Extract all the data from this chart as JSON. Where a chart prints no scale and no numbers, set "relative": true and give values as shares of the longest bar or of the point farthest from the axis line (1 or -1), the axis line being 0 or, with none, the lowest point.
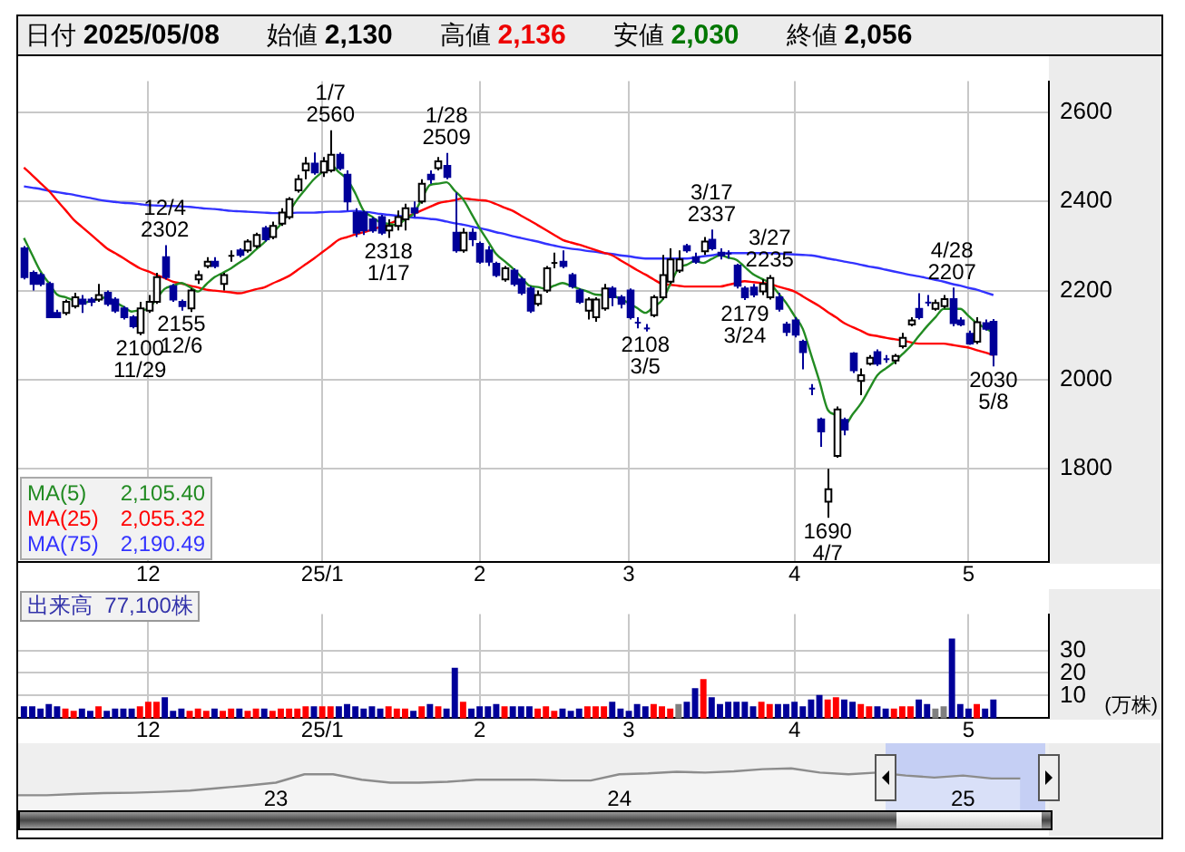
{
  "chart_data": [
    {
      "type": "candlestick",
      "grid": true,
      "legend": "bottom left",
      "categories": [
        null,
        null,
        null,
        null,
        null,
        null,
        null,
        null,
        null,
        null,
        null,
        null,
        null,
        null,
        null,
        "12",
        null,
        null,
        null,
        null,
        null,
        null,
        null,
        null,
        null,
        null,
        null,
        null,
        null,
        null,
        null,
        null,
        null,
        null,
        null,
        null,
        "25/1",
        null,
        null,
        null,
        null,
        null,
        null,
        null,
        null,
        null,
        null,
        null,
        null,
        null,
        null,
        null,
        null,
        null,
        null,
        "2",
        null,
        null,
        null,
        null,
        null,
        null,
        null,
        null,
        null,
        null,
        null,
        null,
        null,
        null,
        null,
        null,
        null,
        "3",
        null,
        null,
        null,
        null,
        null,
        null,
        null,
        null,
        null,
        null,
        null,
        null,
        null,
        null,
        null,
        null,
        null,
        null,
        null,
        "4",
        null,
        null,
        null,
        null,
        null,
        null,
        null,
        null,
        null,
        null,
        null,
        null,
        null,
        null,
        null,
        null,
        null,
        null,
        null,
        null,
        "5",
        null,
        null,
        null
      ],
      "ohlc": [
        [
          2295,
          2300,
          2225,
          2230
        ],
        [
          2240,
          2245,
          2200,
          2215
        ],
        [
          2235,
          2240,
          2210,
          2215
        ],
        [
          2215,
          2220,
          2140,
          2140
        ],
        [
          2150,
          2157,
          2140,
          2140
        ],
        [
          2150,
          2180,
          2145,
          2175
        ],
        [
          2165,
          2195,
          2160,
          2185
        ],
        [
          2180,
          2190,
          2150,
          2170
        ],
        [
          2180,
          2185,
          2165,
          2175
        ],
        [
          2180,
          2215,
          2175,
          2190
        ],
        [
          2195,
          2200,
          2165,
          2170
        ],
        [
          2180,
          2185,
          2150,
          2155
        ],
        [
          2160,
          2165,
          2135,
          2140
        ],
        [
          2140,
          2145,
          2115,
          2120
        ],
        [
          2105,
          2175,
          2100,
          2160
        ],
        [
          2155,
          2190,
          2150,
          2175
        ],
        [
          2175,
          2240,
          2170,
          2230
        ],
        [
          2275,
          2302,
          2225,
          2230
        ],
        [
          2210,
          2215,
          2175,
          2180
        ],
        [
          2175,
          2180,
          2155,
          2165
        ],
        [
          2160,
          2205,
          2152,
          2200
        ],
        [
          2225,
          2245,
          2215,
          2235
        ],
        [
          2255,
          2275,
          2250,
          2265
        ],
        [
          2265,
          2275,
          2250,
          2255
        ],
        [
          2215,
          2240,
          2200,
          2235
        ],
        [
          2275,
          2290,
          2265,
          2278
        ],
        [
          2290,
          2295,
          2275,
          2280
        ],
        [
          2290,
          2315,
          2285,
          2310
        ],
        [
          2300,
          2330,
          2295,
          2325
        ],
        [
          2340,
          2345,
          2310,
          2315
        ],
        [
          2320,
          2355,
          2315,
          2345
        ],
        [
          2350,
          2385,
          2345,
          2375
        ],
        [
          2365,
          2410,
          2360,
          2405
        ],
        [
          2425,
          2460,
          2420,
          2450
        ],
        [
          2470,
          2500,
          2450,
          2485
        ],
        [
          2485,
          2510,
          2460,
          2465
        ],
        [
          2465,
          2500,
          2455,
          2490
        ],
        [
          2470,
          2560,
          2465,
          2505
        ],
        [
          2505,
          2510,
          2470,
          2475
        ],
        [
          2460,
          2470,
          2380,
          2400
        ],
        [
          2375,
          2385,
          2320,
          2330
        ],
        [
          2375,
          2380,
          2325,
          2335
        ],
        [
          2360,
          2365,
          2330,
          2335
        ],
        [
          2365,
          2370,
          2325,
          2330
        ],
        [
          2335,
          2360,
          2318,
          2345
        ],
        [
          2345,
          2380,
          2335,
          2365
        ],
        [
          2360,
          2395,
          2335,
          2385
        ],
        [
          2385,
          2400,
          2365,
          2375
        ],
        [
          2400,
          2450,
          2395,
          2440
        ],
        [
          2460,
          2470,
          2440,
          2450
        ],
        [
          2475,
          2500,
          2470,
          2490
        ],
        [
          2480,
          2509,
          2450,
          2455
        ],
        [
          2330,
          2420,
          2285,
          2290
        ],
        [
          2290,
          2340,
          2285,
          2330
        ],
        [
          2330,
          2340,
          2300,
          2315
        ],
        [
          2305,
          2310,
          2260,
          2265
        ],
        [
          2290,
          2300,
          2255,
          2265
        ],
        [
          2260,
          2265,
          2230,
          2235
        ],
        [
          2225,
          2255,
          2220,
          2250
        ],
        [
          2245,
          2250,
          2210,
          2215
        ],
        [
          2225,
          2230,
          2190,
          2195
        ],
        [
          2205,
          2210,
          2150,
          2155
        ],
        [
          2170,
          2200,
          2165,
          2190
        ],
        [
          2200,
          2255,
          2195,
          2250
        ],
        [
          2258,
          2285,
          2250,
          2262
        ],
        [
          2265,
          2290,
          2250,
          2255
        ],
        [
          2235,
          2240,
          2205,
          2210
        ],
        [
          2200,
          2205,
          2170,
          2175
        ],
        [
          2155,
          2185,
          2135,
          2180
        ],
        [
          2140,
          2185,
          2130,
          2180
        ],
        [
          2160,
          2215,
          2155,
          2205
        ],
        [
          2205,
          2210,
          2165,
          2185
        ],
        [
          2185,
          2190,
          2160,
          2170
        ],
        [
          2200,
          2205,
          2135,
          2140
        ],
        [
          2128,
          2140,
          2115,
          2125
        ],
        [
          2115,
          2125,
          2108,
          2113
        ],
        [
          2145,
          2190,
          2140,
          2185
        ],
        [
          2185,
          2280,
          2180,
          2235
        ],
        [
          2220,
          2295,
          2215,
          2270
        ],
        [
          2245,
          2290,
          2240,
          2270
        ],
        [
          2300,
          2305,
          2285,
          2290
        ],
        [
          2275,
          2285,
          2260,
          2265
        ],
        [
          2288,
          2320,
          2280,
          2310
        ],
        [
          2314,
          2337,
          2290,
          2295
        ],
        [
          2285,
          2295,
          2270,
          2279
        ],
        [
          2283,
          2290,
          2272,
          2281
        ],
        [
          2256,
          2260,
          2205,
          2211
        ],
        [
          2205,
          2210,
          2179,
          2185
        ],
        [
          2207,
          2215,
          2185,
          2191
        ],
        [
          2198,
          2225,
          2190,
          2215
        ],
        [
          2185,
          2235,
          2180,
          2228
        ],
        [
          2185,
          2195,
          2153,
          2159
        ],
        [
          2124,
          2130,
          2098,
          2107
        ],
        [
          2133,
          2140,
          2095,
          2101
        ],
        [
          2085,
          2090,
          2023,
          2062
        ],
        [
          1980,
          1990,
          1965,
          1978
        ],
        [
          1911,
          1915,
          1849,
          1884
        ],
        [
          1726,
          1800,
          1690,
          1754
        ],
        [
          1829,
          1940,
          1825,
          1933
        ],
        [
          1910,
          1915,
          1875,
          1888
        ],
        [
          2059,
          2062,
          2015,
          2021
        ],
        [
          1997,
          2025,
          1965,
          2010
        ],
        [
          2036,
          2055,
          2032,
          2049
        ],
        [
          2062,
          2068,
          2031,
          2036
        ],
        [
          2046,
          2055,
          2038,
          2044
        ],
        [
          2043,
          2058,
          2035,
          2053
        ],
        [
          2075,
          2105,
          2070,
          2094
        ],
        [
          2124,
          2140,
          2120,
          2133
        ],
        [
          2159,
          2194,
          2135,
          2140
        ],
        [
          2173,
          2190,
          2165,
          2171
        ],
        [
          2159,
          2180,
          2155,
          2172
        ],
        [
          2165,
          2190,
          2160,
          2181
        ],
        [
          2181,
          2207,
          2120,
          2127
        ],
        [
          2133,
          2140,
          2120,
          2124
        ],
        [
          2103,
          2110,
          2078,
          2081
        ],
        [
          2085,
          2140,
          2080,
          2129
        ],
        [
          2127,
          2135,
          2110,
          2114
        ],
        [
          2130,
          2136,
          2030,
          2056
        ]
      ],
      "series": [
        {
          "type": "line",
          "name": "MA(5) 2,105.40",
          "color": "#228b22",
          "values": [
            2318,
            2280,
            2243,
            2217,
            2191,
            2185,
            2178,
            2172,
            2176,
            2181,
            2185,
            2174,
            2164,
            2153,
            2156,
            2159,
            2182,
            2204,
            2211,
            2217,
            2208,
            2198,
            2214,
            2230,
            2240,
            2250,
            2263,
            2275,
            2292,
            2308,
            2329,
            2349,
            2377,
            2405,
            2428,
            2450,
            2466,
            2482,
            2466,
            2450,
            2418,
            2379,
            2366,
            2353,
            2350,
            2347,
            2360,
            2372,
            2405,
            2437,
            2440,
            2443,
            2424,
            2405,
            2373,
            2340,
            2311,
            2282,
            2266,
            2250,
            2231,
            2211,
            2208,
            2204,
            2211,
            2217,
            2211,
            2204,
            2198,
            2191,
            2190,
            2189,
            2181,
            2172,
            2161,
            2150,
            2164,
            2178,
            2214,
            2250,
            2258,
            2266,
            2262,
            2271,
            2279,
            2274,
            2269,
            2253,
            2237,
            2227,
            2217,
            2195,
            2172,
            2143,
            2114,
            2056,
            1997,
            1933,
            1920,
            1897,
            1922,
            1946,
            1978,
            2010,
            2025,
            2039,
            2057,
            2075,
            2098,
            2120,
            2140,
            2159,
            2159,
            2159,
            2143,
            2127,
            2116,
            2105
          ]
        },
        {
          "type": "line",
          "name": "MA(25) 2,055.32",
          "color": "#ff0000",
          "values": [
            2476,
            2459,
            2441,
            2424,
            2402,
            2381,
            2359,
            2343,
            2327,
            2311,
            2295,
            2284,
            2273,
            2261,
            2250,
            2243,
            2235,
            2228,
            2220,
            2216,
            2211,
            2207,
            2202,
            2200,
            2198,
            2196,
            2194,
            2198,
            2203,
            2207,
            2216,
            2224,
            2233,
            2246,
            2259,
            2272,
            2286,
            2300,
            2314,
            2320,
            2326,
            2331,
            2337,
            2343,
            2349,
            2357,
            2364,
            2372,
            2380,
            2388,
            2396,
            2400,
            2403,
            2407,
            2405,
            2403,
            2401,
            2394,
            2386,
            2379,
            2368,
            2358,
            2347,
            2336,
            2325,
            2314,
            2308,
            2303,
            2297,
            2291,
            2285,
            2279,
            2268,
            2257,
            2246,
            2236,
            2225,
            2215,
            2213,
            2211,
            2209,
            2209,
            2209,
            2209,
            2209,
            2213,
            2217,
            2221,
            2219,
            2217,
            2215,
            2209,
            2204,
            2198,
            2187,
            2176,
            2165,
            2152,
            2140,
            2127,
            2118,
            2110,
            2101,
            2098,
            2094,
            2091,
            2088,
            2084,
            2081,
            2081,
            2081,
            2081,
            2078,
            2075,
            2072,
            2066,
            2061,
            2055
          ]
        },
        {
          "type": "line",
          "name": "MA(75) 2,190.49",
          "color": "#3333ff",
          "values": [
            2434,
            2431,
            2428,
            2424,
            2421,
            2418,
            2415,
            2411,
            2408,
            2404,
            2401,
            2399,
            2397,
            2396,
            2394,
            2392,
            2391,
            2390,
            2390,
            2389,
            2388,
            2386,
            2384,
            2383,
            2381,
            2379,
            2378,
            2377,
            2376,
            2375,
            2374,
            2374,
            2374,
            2375,
            2375,
            2375,
            2376,
            2377,
            2377,
            2378,
            2379,
            2377,
            2375,
            2372,
            2370,
            2368,
            2366,
            2364,
            2363,
            2361,
            2359,
            2355,
            2351,
            2348,
            2344,
            2340,
            2336,
            2331,
            2327,
            2322,
            2318,
            2314,
            2310,
            2305,
            2301,
            2297,
            2294,
            2292,
            2289,
            2287,
            2284,
            2282,
            2279,
            2277,
            2274,
            2272,
            2272,
            2272,
            2272,
            2272,
            2272,
            2274,
            2277,
            2279,
            2282,
            2284,
            2284,
            2284,
            2284,
            2284,
            2284,
            2283,
            2282,
            2281,
            2280,
            2279,
            2276,
            2272,
            2269,
            2265,
            2262,
            2258,
            2254,
            2251,
            2247,
            2243,
            2239,
            2235,
            2232,
            2228,
            2224,
            2220,
            2215,
            2211,
            2206,
            2202,
            2196,
            2190
          ]
        }
      ],
      "ylim": [
        1590,
        2670
      ],
      "yticks": [
        1800,
        2000,
        2200,
        2400,
        2600
      ],
      "annotations": [
        "日付 2025/05/08",
        "始値 2,130",
        "高値 2,136",
        "安値 2,030",
        "終値 2,056",
        {
          "text": "12/4\n2302",
          "y": 2302
        },
        {
          "text": "2100\n11/29",
          "y": 2100
        },
        {
          "text": "2155\n12/6",
          "y": 2155
        },
        {
          "text": "1/7\n2560",
          "y": 2560
        },
        {
          "text": "2318\n1/17",
          "y": 2318
        },
        {
          "text": "1/28\n2509",
          "y": 2509
        },
        {
          "text": "2108\n3/5",
          "y": 2108
        },
        {
          "text": "3/17\n2337",
          "y": 2337
        },
        {
          "text": "2179\n3/24",
          "y": 2179
        },
        {
          "text": "3/27\n2235",
          "y": 2235
        },
        {
          "text": "1690\n4/7",
          "y": 1690
        },
        {
          "text": "4/28\n2207",
          "y": 2207
        },
        {
          "text": "2030\n5/8",
          "y": 2030
        }
      ]
    },
    {
      "type": "bar",
      "grid": true,
      "ylabel": "(万株)",
      "annotations": [
        "出来高 77,100株"
      ],
      "categories": [
        null,
        null,
        null,
        null,
        null,
        null,
        null,
        null,
        null,
        null,
        null,
        null,
        null,
        null,
        null,
        "12",
        null,
        null,
        null,
        null,
        null,
        null,
        null,
        null,
        null,
        null,
        null,
        null,
        null,
        null,
        null,
        null,
        null,
        null,
        null,
        null,
        "25/1",
        null,
        null,
        null,
        null,
        null,
        null,
        null,
        null,
        null,
        null,
        null,
        null,
        null,
        null,
        null,
        null,
        null,
        null,
        "2",
        null,
        null,
        null,
        null,
        null,
        null,
        null,
        null,
        null,
        null,
        null,
        null,
        null,
        null,
        null,
        null,
        null,
        "3",
        null,
        null,
        null,
        null,
        null,
        null,
        null,
        null,
        null,
        null,
        null,
        null,
        null,
        null,
        null,
        null,
        null,
        null,
        null,
        "4",
        null,
        null,
        null,
        null,
        null,
        null,
        null,
        null,
        null,
        null,
        null,
        null,
        null,
        null,
        null,
        null,
        null,
        null,
        null,
        null,
        "5",
        null,
        null,
        null
      ],
      "values": [
        5,
        5,
        4,
        6,
        5,
        4,
        3,
        4,
        3,
        5,
        3,
        4,
        4,
        4,
        5,
        7,
        7,
        9,
        3,
        4,
        3,
        4,
        3,
        4,
        3,
        4,
        4,
        3,
        4,
        4,
        3,
        4,
        4,
        4,
        5,
        5,
        5,
        5,
        5,
        6,
        5,
        4,
        5,
        4,
        5,
        4,
        4,
        3,
        5,
        6,
        5,
        4,
        22,
        7,
        4,
        5,
        5,
        6,
        5,
        5,
        5,
        5,
        4,
        5,
        3,
        4,
        3,
        4,
        5,
        5,
        5,
        7,
        4,
        3,
        6,
        5,
        6,
        5,
        4,
        6,
        7,
        13,
        17,
        9,
        6,
        7,
        7,
        7,
        5,
        7,
        6,
        6,
        6,
        7,
        5,
        8,
        10,
        8,
        9,
        8,
        7,
        6,
        5,
        5,
        4,
        4,
        5,
        5,
        8,
        6,
        4,
        5,
        35,
        6,
        4,
        6,
        4,
        8
      ],
      "colors": [
        "#000099",
        "#000099",
        "#000099",
        "#000099",
        "#000099",
        "#ff0000",
        "#ff0000",
        "#000099",
        "#000099",
        "#ff0000",
        "#000099",
        "#000099",
        "#000099",
        "#000099",
        "#ff0000",
        "#ff0000",
        "#ff0000",
        "#000099",
        "#000099",
        "#000099",
        "#ff0000",
        "#ff0000",
        "#ff0000",
        "#000099",
        "#ff0000",
        "#ff0000",
        "#000099",
        "#ff0000",
        "#ff0000",
        "#000099",
        "#ff0000",
        "#ff0000",
        "#ff0000",
        "#ff0000",
        "#ff0000",
        "#000099",
        "#ff0000",
        "#ff0000",
        "#000099",
        "#000099",
        "#000099",
        "#000099",
        "#000099",
        "#000099",
        "#ff0000",
        "#ff0000",
        "#ff0000",
        "#000099",
        "#ff0000",
        "#000099",
        "#ff0000",
        "#000099",
        "#000099",
        "#ff0000",
        "#000099",
        "#000099",
        "#000099",
        "#000099",
        "#ff0000",
        "#000099",
        "#000099",
        "#000099",
        "#ff0000",
        "#ff0000",
        "#ff0000",
        "#000099",
        "#000099",
        "#000099",
        "#ff0000",
        "#ff0000",
        "#ff0000",
        "#000099",
        "#000099",
        "#000099",
        "#000099",
        "#000099",
        "#ff0000",
        "#ff0000",
        "#ff0000",
        "#808080",
        "#000099",
        "#000099",
        "#ff0000",
        "#000099",
        "#000099",
        "#000099",
        "#000099",
        "#000099",
        "#000099",
        "#ff0000",
        "#ff0000",
        "#000099",
        "#000099",
        "#000099",
        "#000099",
        "#000099",
        "#000099",
        "#ff0000",
        "#ff0000",
        "#000099",
        "#000099",
        "#ff0000",
        "#ff0000",
        "#000099",
        "#000099",
        "#ff0000",
        "#ff0000",
        "#ff0000",
        "#000099",
        "#000099",
        "#808080",
        "#808080",
        "#000099",
        "#000099",
        "#000099",
        "#ff0000",
        "#000099",
        "#000099"
      ],
      "ylim": [
        0,
        46
      ],
      "yticks": [
        10,
        20,
        30
      ]
    },
    {
      "type": "area",
      "relative": true,
      "color": "#8c8c8c",
      "categories": [
        null,
        null,
        null,
        null,
        null,
        null,
        null,
        null,
        null,
        "23",
        null,
        null,
        null,
        null,
        null,
        null,
        null,
        null,
        null,
        null,
        null,
        "24",
        null,
        null,
        null,
        null,
        null,
        null,
        null,
        null,
        null,
        null,
        null,
        "25",
        null,
        null,
        null
      ],
      "values": [
        0.36,
        0.36,
        0.39,
        0.41,
        0.42,
        0.44,
        0.47,
        0.53,
        0.59,
        0.66,
        0.86,
        0.86,
        0.73,
        0.66,
        0.66,
        0.68,
        0.73,
        0.73,
        0.73,
        0.71,
        0.71,
        0.86,
        0.88,
        0.92,
        0.9,
        0.93,
        0.98,
        1,
        0.9,
        0.86,
        0.9,
        0.83,
        0.78,
        0.83,
        0.76,
        0.76,
        null
      ]
    }
  ]
}
